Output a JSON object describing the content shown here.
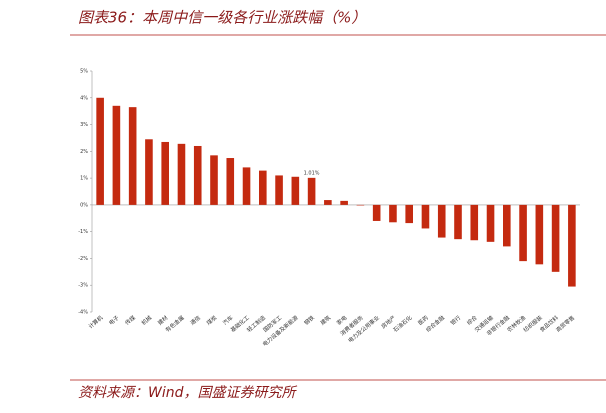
{
  "chart_data": {
    "type": "bar",
    "title": "图表36：本周中信一级各行业涨跌幅（%）",
    "source": "资料来源：Wind，国盛证券研究所",
    "categories": [
      "计算机",
      "电子",
      "传媒",
      "机械",
      "建材",
      "有色金属",
      "通信",
      "煤炭",
      "汽车",
      "基础化工",
      "轻工制造",
      "国防军工",
      "电力设备及新能源",
      "钢铁",
      "建筑",
      "家电",
      "消费者服务",
      "电力及公用事业",
      "房地产",
      "石油石化",
      "医药",
      "综合金融",
      "银行",
      "综合",
      "交通运输",
      "非银行金融",
      "农林牧渔",
      "纺织服装",
      "食品饮料",
      "商贸零售"
    ],
    "values": [
      4.0,
      3.7,
      3.65,
      2.45,
      2.35,
      2.28,
      2.2,
      1.85,
      1.75,
      1.4,
      1.28,
      1.1,
      1.05,
      1.01,
      0.18,
      0.15,
      -0.02,
      -0.6,
      -0.65,
      -0.68,
      -0.88,
      -1.22,
      -1.28,
      -1.32,
      -1.38,
      -1.55,
      -2.1,
      -2.22,
      -2.5,
      -3.05
    ],
    "value_labels": [
      null,
      null,
      null,
      null,
      null,
      null,
      null,
      null,
      null,
      null,
      null,
      null,
      null,
      "1.01%",
      null,
      null,
      null,
      null,
      null,
      null,
      null,
      null,
      null,
      null,
      null,
      null,
      null,
      null,
      null,
      null
    ],
    "color": "#c42a10",
    "ylim": [
      -4,
      5
    ],
    "yticks": [
      {
        "value": -4,
        "label": "-4%"
      },
      {
        "value": -3,
        "label": "-3%"
      },
      {
        "value": -2,
        "label": "-2%"
      },
      {
        "value": -1,
        "label": "-1%"
      },
      {
        "value": 0,
        "label": "0%"
      },
      {
        "value": 1,
        "label": "1%"
      },
      {
        "value": 2,
        "label": "2%"
      },
      {
        "value": 3,
        "label": "3%"
      },
      {
        "value": 4,
        "label": "4%"
      },
      {
        "value": 5,
        "label": "5%"
      }
    ]
  }
}
